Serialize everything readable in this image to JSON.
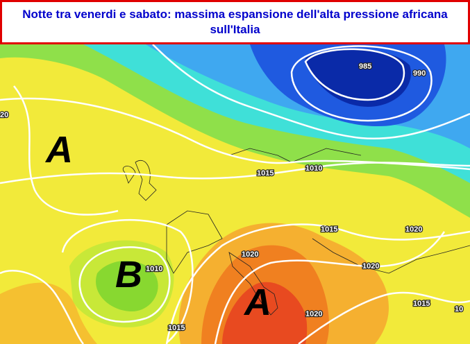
{
  "title": "Notte tra venerdi e sabato: massima espansione dell'alta pressione africana sull'Italia",
  "pressure_centers": [
    "A",
    "B",
    "A"
  ],
  "isobar_labels": [
    "985",
    "990",
    "20",
    "1015",
    "1010",
    "1015",
    "1020",
    "1020",
    "1020",
    "1010",
    "1020",
    "1015",
    "1015",
    "10"
  ]
}
